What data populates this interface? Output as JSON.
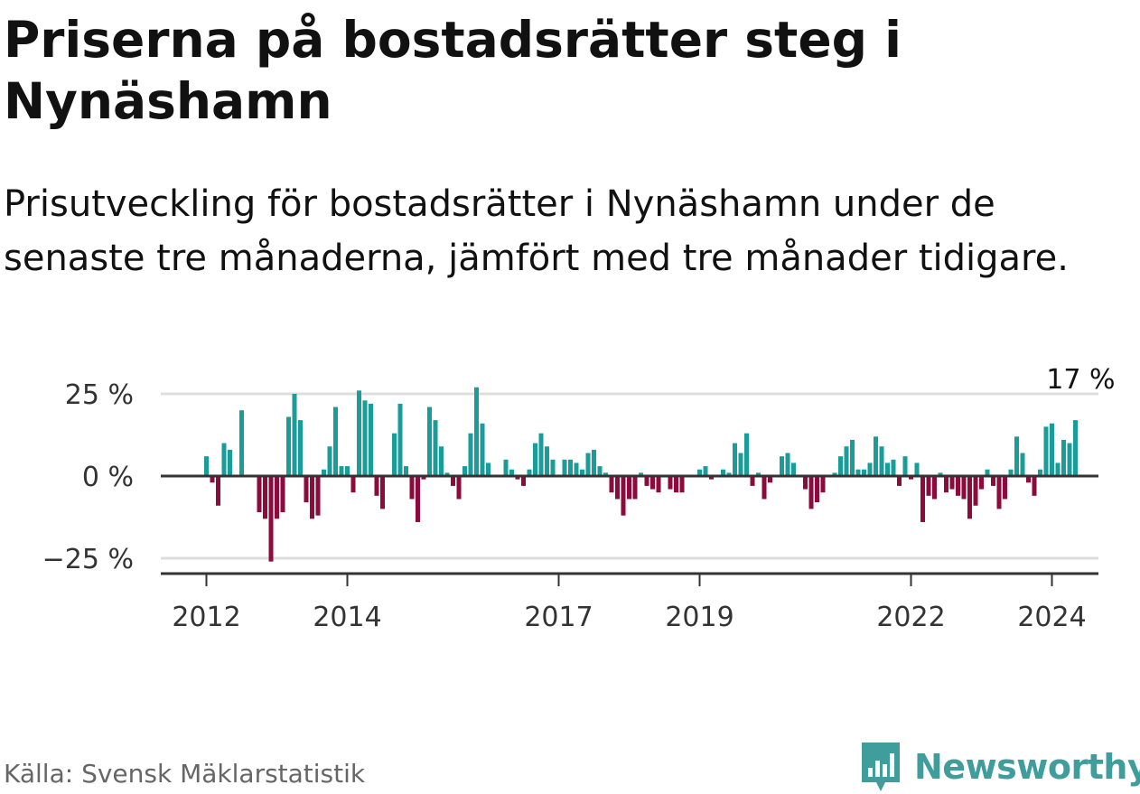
{
  "title": "Priserna på bostadsrätter steg i Nynäshamn",
  "subtitle": "Prisutveckling för bostadsrätter i Nynäshamn under de senaste tre månaderna, jämfört med tre månader tidigare.",
  "source": "Källa: Svensk Mäklarstatistik",
  "brand": "Newsworthy",
  "colors": {
    "positive": "#1a9c98",
    "negative": "#8c0a3c",
    "brand": "#3f9e9b",
    "grid": "#dddddd",
    "axis": "#333333"
  },
  "chart_data": {
    "type": "bar",
    "title": "Priserna på bostadsrätter steg i Nynäshamn",
    "ylabel": "",
    "xlabel": "",
    "ylim": [
      -30,
      25
    ],
    "yticks": [
      {
        "value": 25,
        "label": "25 %"
      },
      {
        "value": 0,
        "label": "0 %"
      },
      {
        "value": -25,
        "label": "−25 %"
      }
    ],
    "xticks": [
      {
        "index": 0,
        "label": "2012"
      },
      {
        "index": 24,
        "label": "2014"
      },
      {
        "index": 60,
        "label": "2017"
      },
      {
        "index": 84,
        "label": "2019"
      },
      {
        "index": 120,
        "label": "2022"
      },
      {
        "index": 144,
        "label": "2024"
      }
    ],
    "annotation": {
      "label": "17 %",
      "value": 17
    },
    "start": "2012-01",
    "values": [
      6,
      -2,
      -9,
      10,
      8,
      0,
      20,
      0,
      0,
      -11,
      -13,
      -26,
      -13,
      -11,
      18,
      25,
      17,
      -8,
      -13,
      -12,
      2,
      9,
      21,
      3,
      3,
      -5,
      26,
      23,
      22,
      -6,
      -10,
      0,
      13,
      22,
      3,
      -7,
      -14,
      -1,
      21,
      17,
      9,
      1,
      -3,
      -7,
      3,
      13,
      27,
      16,
      4,
      0,
      0,
      5,
      2,
      -1,
      -3,
      2,
      10,
      13,
      9,
      5,
      0,
      5,
      5,
      4,
      2,
      7,
      8,
      3,
      1,
      -5,
      -7,
      -12,
      -7,
      -7,
      1,
      -3,
      -4,
      -5,
      0,
      -4,
      -5,
      -5,
      0,
      0,
      2,
      3,
      -1,
      0,
      2,
      1,
      10,
      7,
      13,
      -3,
      1,
      -7,
      -2,
      0,
      6,
      7,
      4,
      0,
      -4,
      -10,
      -8,
      -5,
      0,
      1,
      6,
      9,
      11,
      2,
      2,
      4,
      12,
      9,
      4,
      5,
      -3,
      6,
      -1,
      4,
      -14,
      -6,
      -7,
      1,
      -5,
      -4,
      -6,
      -7,
      -13,
      -9,
      -4,
      2,
      -3,
      -10,
      -7,
      2,
      12,
      7,
      -2,
      -6,
      2,
      15,
      16,
      4,
      11,
      10,
      17
    ]
  }
}
